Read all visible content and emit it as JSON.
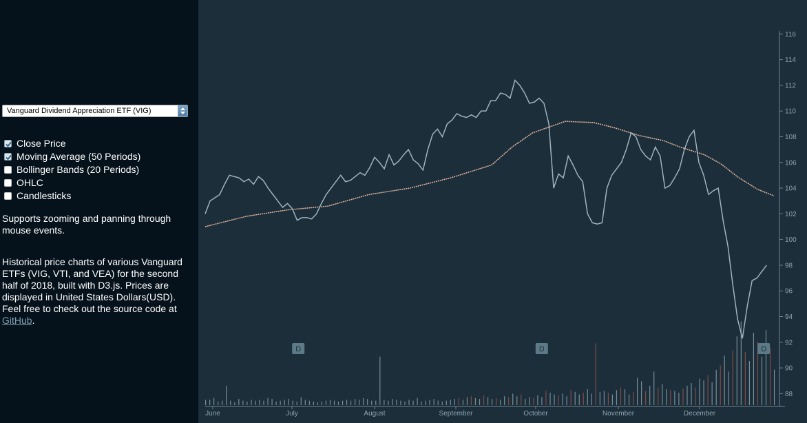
{
  "sidebar": {
    "select_value": "Vanguard Dividend Appreciation ETF (VIG)",
    "options": [
      {
        "label": "Close Price",
        "checked": true
      },
      {
        "label": "Moving Average (50 Periods)",
        "checked": true
      },
      {
        "label": "Bollinger Bands (20 Periods)",
        "checked": false
      },
      {
        "label": "OHLC",
        "checked": false
      },
      {
        "label": "Candlesticks",
        "checked": false
      }
    ],
    "zoom_text": "Supports zooming and panning through mouse events.",
    "desc_text": "Historical price charts of various Vanguard ETFs (VIG, VTI, and VEA) for the second half of 2018, built with D3.js. Prices are displayed in United States Dollars(USD). Feel free to check out the source code at ",
    "link_text": "GitHub",
    "link_suffix": "."
  },
  "chart_data": {
    "type": "line",
    "x_ticks": [
      "June",
      "July",
      "August",
      "September",
      "October",
      "November",
      "December"
    ],
    "y_ticks": [
      88,
      90,
      92,
      94,
      96,
      98,
      100,
      102,
      104,
      106,
      108,
      110,
      112,
      114,
      116
    ],
    "ylim": [
      87,
      116.5
    ],
    "close_price": [
      [
        0,
        102.0
      ],
      [
        1,
        103.0
      ],
      [
        3,
        103.5
      ],
      [
        4,
        104.3
      ],
      [
        5,
        105.0
      ],
      [
        7,
        104.8
      ],
      [
        8,
        104.5
      ],
      [
        9,
        104.7
      ],
      [
        10,
        104.3
      ],
      [
        11,
        104.9
      ],
      [
        12,
        104.6
      ],
      [
        13,
        104.0
      ],
      [
        14,
        103.5
      ],
      [
        15,
        103.0
      ],
      [
        16,
        102.5
      ],
      [
        17,
        102.8
      ],
      [
        18,
        102.4
      ],
      [
        19,
        101.5
      ],
      [
        20,
        101.7
      ],
      [
        21,
        101.7
      ],
      [
        22,
        101.6
      ],
      [
        23,
        102.0
      ],
      [
        24,
        102.8
      ],
      [
        25,
        103.5
      ],
      [
        26,
        104.0
      ],
      [
        27,
        104.5
      ],
      [
        28,
        105.0
      ],
      [
        29,
        104.5
      ],
      [
        30,
        104.6
      ],
      [
        31,
        104.9
      ],
      [
        32,
        105.2
      ],
      [
        33,
        105.0
      ],
      [
        34,
        105.6
      ],
      [
        35,
        106.4
      ],
      [
        36,
        106.0
      ],
      [
        37,
        105.5
      ],
      [
        38,
        106.6
      ],
      [
        39,
        105.8
      ],
      [
        40,
        106.1
      ],
      [
        41,
        106.6
      ],
      [
        42,
        107.0
      ],
      [
        43,
        106.2
      ],
      [
        44,
        105.9
      ],
      [
        45,
        105.4
      ],
      [
        46,
        107.0
      ],
      [
        47,
        108.2
      ],
      [
        48,
        108.6
      ],
      [
        49,
        108.0
      ],
      [
        50,
        109.0
      ],
      [
        51,
        109.3
      ],
      [
        52,
        109.8
      ],
      [
        53,
        109.6
      ],
      [
        54,
        109.5
      ],
      [
        55,
        109.7
      ],
      [
        56,
        109.5
      ],
      [
        57,
        110.0
      ],
      [
        58,
        110.0
      ],
      [
        59,
        110.8
      ],
      [
        60,
        110.8
      ],
      [
        61,
        111.4
      ],
      [
        62,
        111.3
      ],
      [
        63,
        111.0
      ],
      [
        64,
        112.4
      ],
      [
        65,
        112.0
      ],
      [
        66,
        111.4
      ],
      [
        67,
        110.6
      ],
      [
        68,
        110.7
      ],
      [
        69,
        111.0
      ],
      [
        70,
        110.6
      ],
      [
        71,
        109.0
      ],
      [
        72,
        104.0
      ],
      [
        73,
        105.1
      ],
      [
        74,
        104.8
      ],
      [
        75,
        106.5
      ],
      [
        76,
        105.8
      ],
      [
        77,
        105.0
      ],
      [
        78,
        104.5
      ],
      [
        79,
        102.0
      ],
      [
        80,
        101.3
      ],
      [
        81,
        101.2
      ],
      [
        82,
        101.3
      ],
      [
        83,
        104.0
      ],
      [
        84,
        105.0
      ],
      [
        85,
        105.5
      ],
      [
        86,
        106.0
      ],
      [
        87,
        107.0
      ],
      [
        88,
        108.3
      ],
      [
        89,
        108.0
      ],
      [
        90,
        107.0
      ],
      [
        91,
        106.5
      ],
      [
        92,
        106.2
      ],
      [
        93,
        107.2
      ],
      [
        94,
        106.5
      ],
      [
        95,
        104.0
      ],
      [
        96,
        104.2
      ],
      [
        97,
        104.8
      ],
      [
        98,
        105.5
      ],
      [
        99,
        107.0
      ],
      [
        100,
        108.0
      ],
      [
        101,
        108.5
      ],
      [
        102,
        106.0
      ],
      [
        103,
        105.0
      ],
      [
        104,
        103.5
      ],
      [
        105,
        103.8
      ],
      [
        106,
        104.0
      ],
      [
        107,
        101.5
      ],
      [
        108,
        99.5
      ],
      [
        109,
        96.5
      ],
      [
        110,
        93.8
      ],
      [
        111,
        92.3
      ],
      [
        112,
        94.8
      ],
      [
        113,
        96.8
      ],
      [
        114,
        97.0
      ],
      [
        115,
        97.5
      ],
      [
        116,
        98.0
      ]
    ],
    "moving_average": [
      [
        0,
        101.0
      ],
      [
        10,
        101.8
      ],
      [
        20,
        102.3
      ],
      [
        30,
        102.6
      ],
      [
        40,
        103.5
      ],
      [
        50,
        104.0
      ],
      [
        60,
        104.8
      ],
      [
        70,
        105.8
      ],
      [
        75,
        107.2
      ],
      [
        80,
        108.3
      ],
      [
        88,
        109.2
      ],
      [
        95,
        109.1
      ],
      [
        100,
        108.7
      ],
      [
        106,
        108.1
      ],
      [
        112,
        107.7
      ],
      [
        116,
        107.2
      ],
      [
        122,
        106.6
      ],
      [
        126,
        105.9
      ],
      [
        130,
        104.9
      ],
      [
        135,
        103.9
      ],
      [
        139,
        103.4
      ]
    ],
    "volume_max": 1.0,
    "volume": [
      0.06,
      0.06,
      0.08,
      0.04,
      0.05,
      0.22,
      0.05,
      0.03,
      0.07,
      0.05,
      0.04,
      0.06,
      0.05,
      0.06,
      0.05,
      0.08,
      0.07,
      0.04,
      0.05,
      0.06,
      0.07,
      0.05,
      0.04,
      0.09,
      0.06,
      0.05,
      0.04,
      0.03,
      0.04,
      0.05,
      0.06,
      0.05,
      0.04,
      0.05,
      0.06,
      0.05,
      0.07,
      0.06,
      0.08,
      0.07,
      0.05,
      0.05,
      0.55,
      0.06,
      0.05,
      0.07,
      0.06,
      0.05,
      0.04,
      0.06,
      0.05,
      0.08,
      0.04,
      0.05,
      0.06,
      0.07,
      0.05,
      0.04,
      0.05,
      0.06,
      0.07,
      0.08,
      0.06,
      0.09,
      0.1,
      0.08,
      0.07,
      0.11,
      0.09,
      0.07,
      0.08,
      0.06,
      0.1,
      0.09,
      0.13,
      0.1,
      0.12,
      0.07,
      0.09,
      0.08,
      0.11,
      0.09,
      0.16,
      0.14,
      0.12,
      0.11,
      0.13,
      0.1,
      0.17,
      0.15,
      0.12,
      0.14,
      0.18,
      0.13,
      0.7,
      0.15,
      0.16,
      0.14,
      0.12,
      0.17,
      0.2,
      0.18,
      0.12,
      0.15,
      0.31,
      0.27,
      0.16,
      0.22,
      0.38,
      0.2,
      0.24,
      0.18,
      0.17,
      0.16,
      0.14,
      0.19,
      0.22,
      0.25,
      0.2,
      0.3,
      0.28,
      0.34,
      0.26,
      0.4,
      0.45,
      0.56,
      0.38,
      0.62,
      0.78,
      0.95,
      0.6,
      0.5,
      0.82,
      0.72,
      0.55,
      0.85,
      0.65,
      0.4
    ],
    "events": [
      {
        "label": "D",
        "x": 26
      },
      {
        "label": "D",
        "x": 94
      },
      {
        "label": "D",
        "x": 156
      }
    ]
  }
}
